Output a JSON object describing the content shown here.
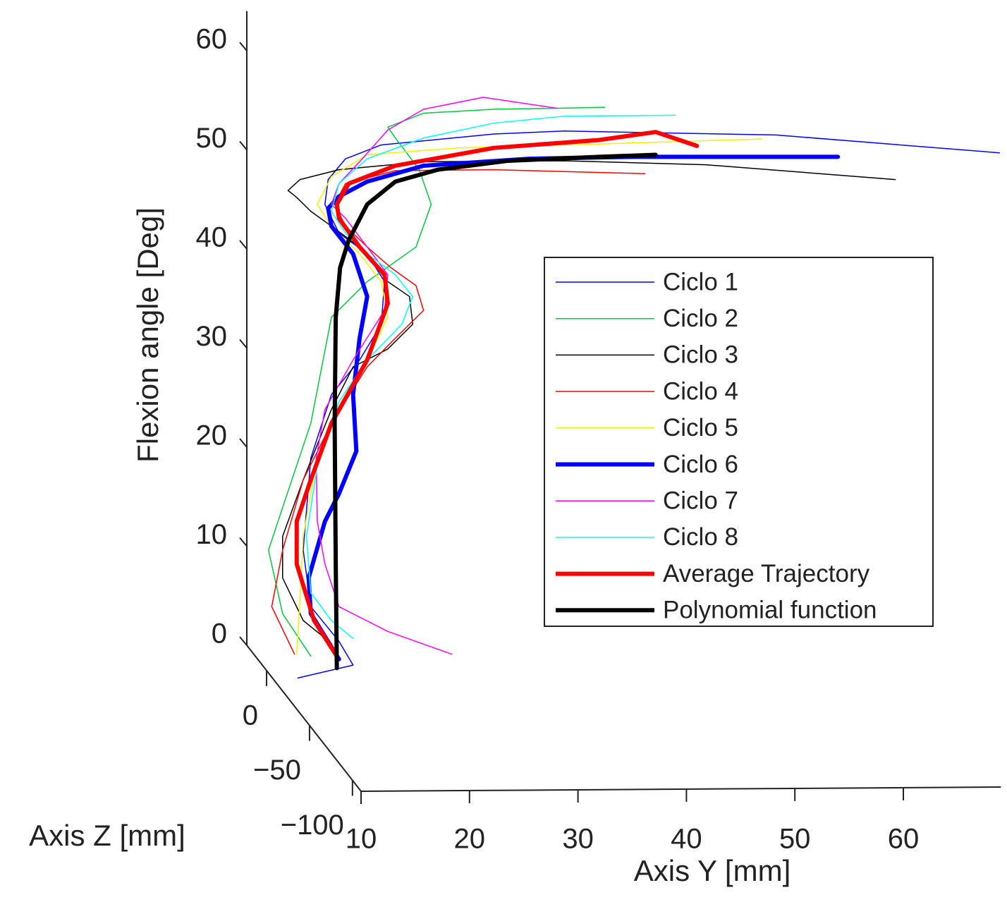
{
  "chart_data": {
    "type": "line3d",
    "ylabel": "Flexion angle [Deg]",
    "xlabel": "Axis Y [mm]",
    "zlabel": "Axis Z [mm]",
    "xlim": [
      10,
      69
    ],
    "xticks": [
      10,
      20,
      30,
      40,
      50,
      60
    ],
    "ylim": [
      0,
      64
    ],
    "yticks": [
      0,
      10,
      20,
      30,
      40,
      50,
      60
    ],
    "zlim": [
      23,
      -110
    ],
    "zticks": [
      0,
      {
        "value": -50,
        "label": "−50"
      },
      {
        "value": -100,
        "label": "−100"
      }
    ],
    "legend": "right",
    "series": [
      {
        "name": "Ciclo 1",
        "color": "#0000ff",
        "line_width": 1.5,
        "x": [
          14.7,
          19.8,
          18.5,
          15.9,
          15.2,
          15.9,
          17.8,
          20.4,
          22.4,
          22.7,
          21.1,
          18.5,
          17.2,
          17.5,
          19.1,
          22.4,
          32.8,
          39.3,
          58.8,
          79.4
        ],
        "values": [
          -3.3,
          -2.0,
          0.4,
          3.9,
          9.6,
          18.9,
          25.3,
          28.8,
          32.4,
          36.7,
          39.5,
          41.6,
          44.5,
          47.0,
          49.1,
          50.5,
          51.6,
          51.9,
          51.5,
          49.7
        ]
      },
      {
        "name": "Ciclo 2",
        "color": "#00c840",
        "line_width": 1.5,
        "x": [
          15.9,
          13.3,
          12.0,
          13.3,
          15.9,
          17.8,
          21.1,
          25.6,
          27.0,
          25.9,
          23.7,
          23.0,
          26.3,
          32.8,
          38.6,
          43.0
        ],
        "values": [
          -1.1,
          3.2,
          9.6,
          13.9,
          22.4,
          33.1,
          36.7,
          40.2,
          44.5,
          48.0,
          51.2,
          52.3,
          53.7,
          54.1,
          54.2,
          54.3
        ]
      },
      {
        "name": "Ciclo 3",
        "color": "#000000",
        "line_width": 1.5,
        "x": [
          17.8,
          15.2,
          13.3,
          13.3,
          15.2,
          17.8,
          19.8,
          23.0,
          25.3,
          25.0,
          23.0,
          20.4,
          17.8,
          15.9,
          14.6,
          13.8,
          14.9,
          18.5,
          26.3,
          39.3,
          52.3,
          69.8
        ],
        "values": [
          0.2,
          2.5,
          6.8,
          11.0,
          16.7,
          23.8,
          28.1,
          29.9,
          32.4,
          35.2,
          36.7,
          40.2,
          42.3,
          43.8,
          45.2,
          45.9,
          47.0,
          48.0,
          48.8,
          48.9,
          48.5,
          47.0
        ]
      },
      {
        "name": "Ciclo 4",
        "color": "#ff0000",
        "line_width": 1.5,
        "x": [
          14.4,
          12.3,
          13.3,
          15.2,
          17.8,
          21.1,
          23.7,
          26.3,
          25.6,
          23.3,
          21.1,
          19.1,
          18.1,
          19.1,
          23.7,
          32.8,
          46.7
        ],
        "values": [
          -0.9,
          3.9,
          9.6,
          16.7,
          22.4,
          28.1,
          31.0,
          33.8,
          36.3,
          38.1,
          40.2,
          42.3,
          44.5,
          46.6,
          47.9,
          48.0,
          47.6
        ]
      },
      {
        "name": "Ciclo 5",
        "color": "#f2f200",
        "line_width": 1.5,
        "x": [
          14.6,
          14.9,
          15.2,
          16.5,
          18.5,
          21.1,
          23.0,
          22.4,
          20.4,
          17.8,
          16.5,
          17.8,
          21.1,
          29.5,
          45.8,
          57.5
        ],
        "values": [
          -0.9,
          4.6,
          11.0,
          18.9,
          24.6,
          28.8,
          33.1,
          36.7,
          39.5,
          42.3,
          44.5,
          47.3,
          49.5,
          50.2,
          50.7,
          51.1
        ]
      },
      {
        "name": "Ciclo 6",
        "color": "#0000ff",
        "line_width": 6,
        "x": [
          18.5,
          15.9,
          15.7,
          17.2,
          18.5,
          20.1,
          19.8,
          20.4,
          21.1,
          19.8,
          17.8,
          17.5,
          18.5,
          21.1,
          26.3,
          36.0,
          45.8,
          64.5
        ],
        "values": [
          -1.4,
          3.2,
          6.8,
          12.5,
          15.3,
          19.6,
          25.3,
          31.0,
          35.2,
          39.5,
          42.3,
          44.1,
          45.3,
          46.8,
          48.4,
          49.1,
          49.3,
          49.3
        ]
      },
      {
        "name": "Ciclo 7",
        "color": "#ff00ff",
        "line_width": 1.5,
        "x": [
          28.9,
          23.0,
          18.5,
          17.2,
          16.5,
          16.4,
          17.2,
          19.8,
          22.7,
          23.0,
          21.1,
          19.1,
          17.8,
          18.5,
          20.4,
          23.0,
          26.3,
          31.8,
          38.6
        ],
        "values": [
          -0.9,
          1.4,
          3.9,
          8.2,
          12.5,
          18.9,
          23.8,
          28.8,
          33.8,
          37.4,
          40.2,
          43.1,
          44.5,
          46.6,
          48.8,
          52.0,
          54.1,
          55.3,
          54.2
        ]
      },
      {
        "name": "Ciclo 8",
        "color": "#00ffff",
        "line_width": 1.5,
        "x": [
          19.8,
          17.8,
          15.9,
          15.5,
          16.5,
          18.5,
          21.1,
          24.3,
          25.3,
          23.7,
          21.1,
          19.1,
          17.8,
          18.5,
          21.1,
          26.3,
          32.8,
          39.3,
          49.5
        ],
        "values": [
          0.7,
          2.5,
          5.3,
          11.0,
          18.1,
          24.6,
          28.8,
          32.4,
          35.2,
          37.4,
          39.5,
          41.6,
          43.8,
          46.6,
          49.1,
          51.2,
          52.7,
          53.4,
          53.5
        ]
      },
      {
        "name": "Average Trajectory",
        "color": "#ff0000",
        "line_width": 6,
        "x": [
          18.3,
          16.2,
          14.6,
          14.6,
          15.9,
          17.8,
          21.1,
          23.0,
          22.7,
          20.4,
          18.5,
          18.3,
          19.4,
          23.7,
          32.8,
          42.5,
          47.7,
          51.5
        ],
        "values": [
          -1.1,
          2.5,
          8.2,
          12.5,
          16.7,
          22.4,
          28.8,
          34.5,
          37.4,
          40.2,
          43.1,
          44.5,
          46.6,
          48.4,
          50.2,
          51.0,
          51.8,
          50.4
        ]
      },
      {
        "name": "Polynomial function",
        "color": "#000000",
        "line_width": 6,
        "x": [
          18.3,
          18.2,
          18.1,
          18.2,
          18.6,
          19.4,
          21.1,
          23.7,
          27.6,
          34.1,
          42.5,
          47.7
        ],
        "values": [
          -2.3,
          8.2,
          22.4,
          33.1,
          38.1,
          40.9,
          44.5,
          46.8,
          48.0,
          48.9,
          49.3,
          49.5
        ]
      }
    ]
  }
}
